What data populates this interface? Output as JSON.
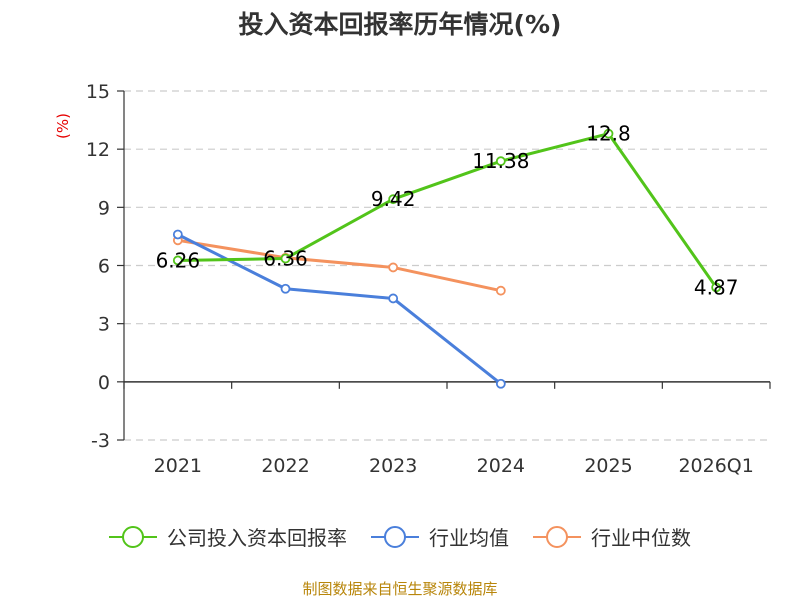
{
  "chart_data": {
    "type": "line",
    "title": "投入资本回报率历年情况(%)",
    "ylabel": "(%)",
    "categories": [
      "2021",
      "2022",
      "2023",
      "2024",
      "2025",
      "2026Q1"
    ],
    "ylim": [
      -3,
      15
    ],
    "yticks": [
      -3,
      0,
      3,
      6,
      9,
      12,
      15
    ],
    "grid": true,
    "legend_position": "bottom",
    "series": [
      {
        "name": "公司投入资本回报率",
        "color": "#52c41a",
        "values": [
          6.26,
          6.36,
          9.42,
          11.38,
          12.8,
          4.87
        ],
        "labels": [
          "6.26",
          "6.36",
          "9.42",
          "11.38",
          "12.8",
          "4.87"
        ]
      },
      {
        "name": "行业均值",
        "color": "#4a7fdb",
        "values": [
          7.6,
          4.8,
          4.3,
          -0.1,
          null,
          null
        ]
      },
      {
        "name": "行业中位数",
        "color": "#f4925e",
        "values": [
          7.3,
          6.4,
          5.9,
          4.7,
          null,
          null
        ]
      }
    ]
  },
  "source_text": "制图数据来自恒生聚源数据库"
}
